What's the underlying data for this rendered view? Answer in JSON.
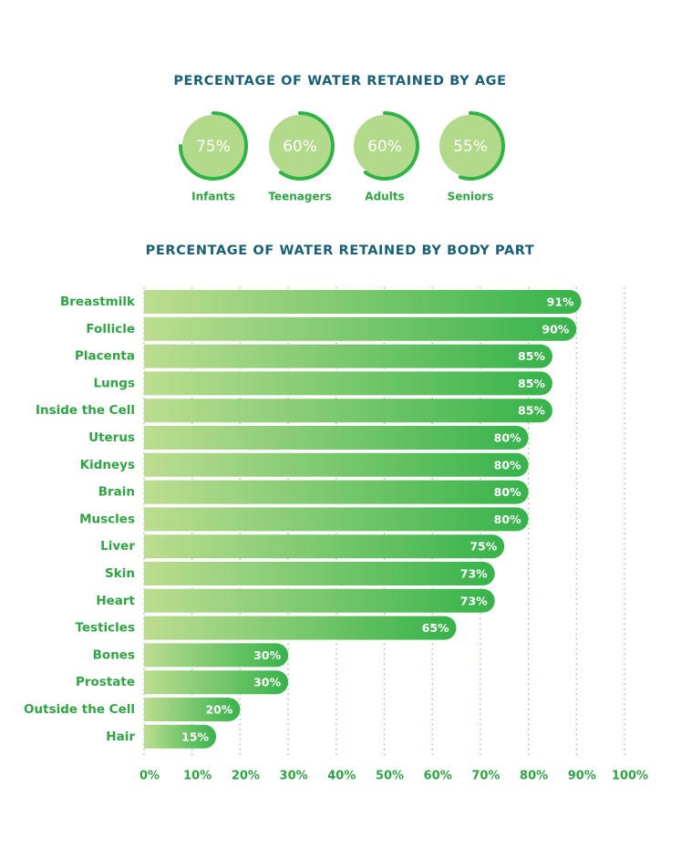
{
  "chart_data": [
    {
      "type": "donut",
      "title": "PERCENTAGE OF WATER RETAINED BY AGE",
      "categories": [
        "Infants",
        "Teenagers",
        "Adults",
        "Seniors"
      ],
      "values": [
        75,
        60,
        60,
        55
      ],
      "value_labels": [
        "75%",
        "60%",
        "60%",
        "55%"
      ],
      "color": "#2fb344",
      "fill": "#b3d98a"
    },
    {
      "type": "bar",
      "orientation": "horizontal",
      "title": "PERCENTAGE OF WATER RETAINED BY BODY PART",
      "categories": [
        "Breastmilk",
        "Follicle",
        "Placenta",
        "Lungs",
        "Inside the Cell",
        "Uterus",
        "Kidneys",
        "Brain",
        "Muscles",
        "Liver",
        "Skin",
        "Heart",
        "Testicles",
        "Bones",
        "Prostate",
        "Outside the Cell",
        "Hair"
      ],
      "values": [
        91,
        90,
        85,
        85,
        85,
        80,
        80,
        80,
        80,
        75,
        73,
        73,
        65,
        30,
        30,
        20,
        15
      ],
      "value_labels": [
        "91%",
        "90%",
        "85%",
        "85%",
        "85%",
        "80%",
        "80%",
        "80%",
        "80%",
        "75%",
        "73%",
        "73%",
        "65%",
        "30%",
        "30%",
        "20%",
        "15%"
      ],
      "gradient": [
        "#bcdd90",
        "#36b34a"
      ],
      "xlim": [
        0,
        100
      ],
      "xticks": [
        {
          "value": 0,
          "label": "0%"
        },
        {
          "value": 10,
          "label": "10%"
        },
        {
          "value": 20,
          "label": "20%"
        },
        {
          "value": 30,
          "label": "30%"
        },
        {
          "value": 40,
          "label": "40%"
        },
        {
          "value": 50,
          "label": "50%"
        },
        {
          "value": 60,
          "label": "60%"
        },
        {
          "value": 70,
          "label": "70%"
        },
        {
          "value": 80,
          "label": "80%"
        },
        {
          "value": 90,
          "label": "90%"
        },
        {
          "value": 100,
          "label": "100%"
        }
      ],
      "grid": true,
      "grid_color": "#7ccf7f"
    }
  ]
}
